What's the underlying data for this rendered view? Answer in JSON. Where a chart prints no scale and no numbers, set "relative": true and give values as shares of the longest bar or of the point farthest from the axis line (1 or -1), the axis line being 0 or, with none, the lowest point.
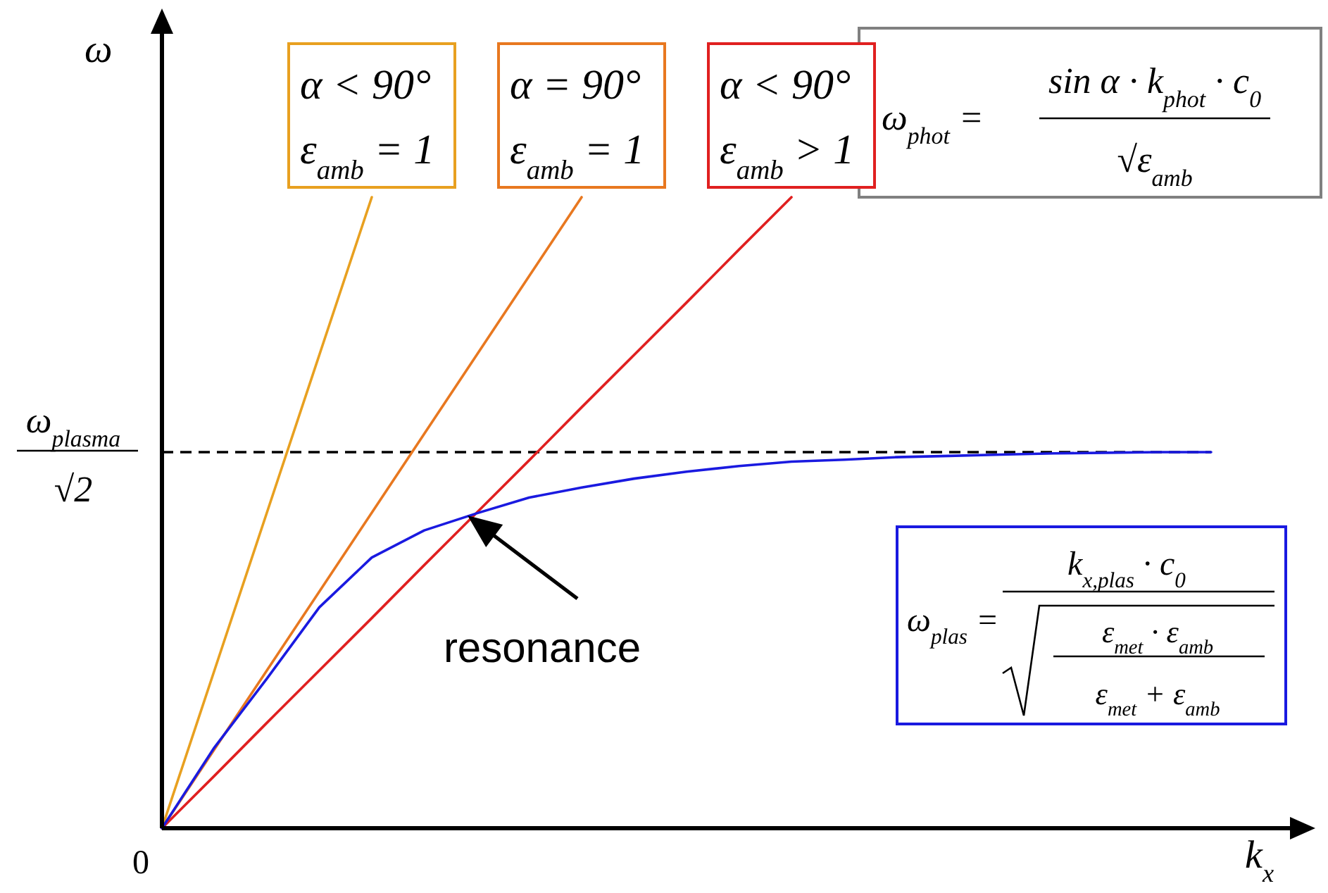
{
  "chart_data": {
    "type": "line",
    "relative": true,
    "xlabel": "k$_{x}$",
    "ylabel": "ω",
    "categories": [
      null,
      null,
      null,
      null,
      null,
      null,
      null,
      null,
      null,
      null,
      null,
      null,
      null,
      null,
      null,
      null,
      null,
      null,
      null,
      null,
      null
    ],
    "series": [
      {
        "name": "α < 90°\nε$_{amb}$ = 1",
        "color": "#e8a020",
        "values": [
          0,
          0.25,
          0.5,
          0.75,
          1,
          null,
          null,
          null,
          null,
          null,
          null,
          null,
          null,
          null,
          null,
          null,
          null,
          null,
          null,
          null,
          null
        ]
      },
      {
        "name": "α = 90°\nε$_{amb}$ = 1",
        "color": "#e87820",
        "values": [
          0,
          0.125,
          0.25,
          0.375,
          0.5,
          0.625,
          0.75,
          0.875,
          1,
          null,
          null,
          null,
          null,
          null,
          null,
          null,
          null,
          null,
          null,
          null,
          null
        ]
      },
      {
        "name": "α < 90°\nε$_{amb}$ > 1",
        "color": "#e02020",
        "values": [
          0,
          0.083,
          0.167,
          0.25,
          0.333,
          0.417,
          0.5,
          0.583,
          0.667,
          0.75,
          0.833,
          0.917,
          1,
          null,
          null,
          null,
          null,
          null,
          null,
          null,
          null
        ]
      },
      {
        "color": "#1a1ae0",
        "values": [
          0,
          0.128,
          0.237,
          0.35,
          0.429,
          0.472,
          0.499,
          0.524,
          0.54,
          0.554,
          0.565,
          0.574,
          0.581,
          0.584,
          0.588,
          0.59,
          0.592,
          0.594,
          0.595,
          0.596,
          0.596
        ]
      }
    ],
    "ref_lines": [
      {
        "axis": "y",
        "value": 0.596,
        "label": "ω$_{plasma}$",
        "color": "#000000",
        "line_style": "dashed"
      }
    ],
    "annotations": [
      "ω$_{phot}$ =",
      "sin α · k$_{phot}$ · c$_{0}$",
      "√ε$_{amb}$",
      "ω$_{plas}$ =",
      "k$_{x,plas}$ · c$_{0}$",
      "ε$_{met}$ · ε$_{amb}$",
      "ε$_{met}$ + ε$_{amb}$",
      "resonance",
      "0",
      "√2"
    ]
  }
}
